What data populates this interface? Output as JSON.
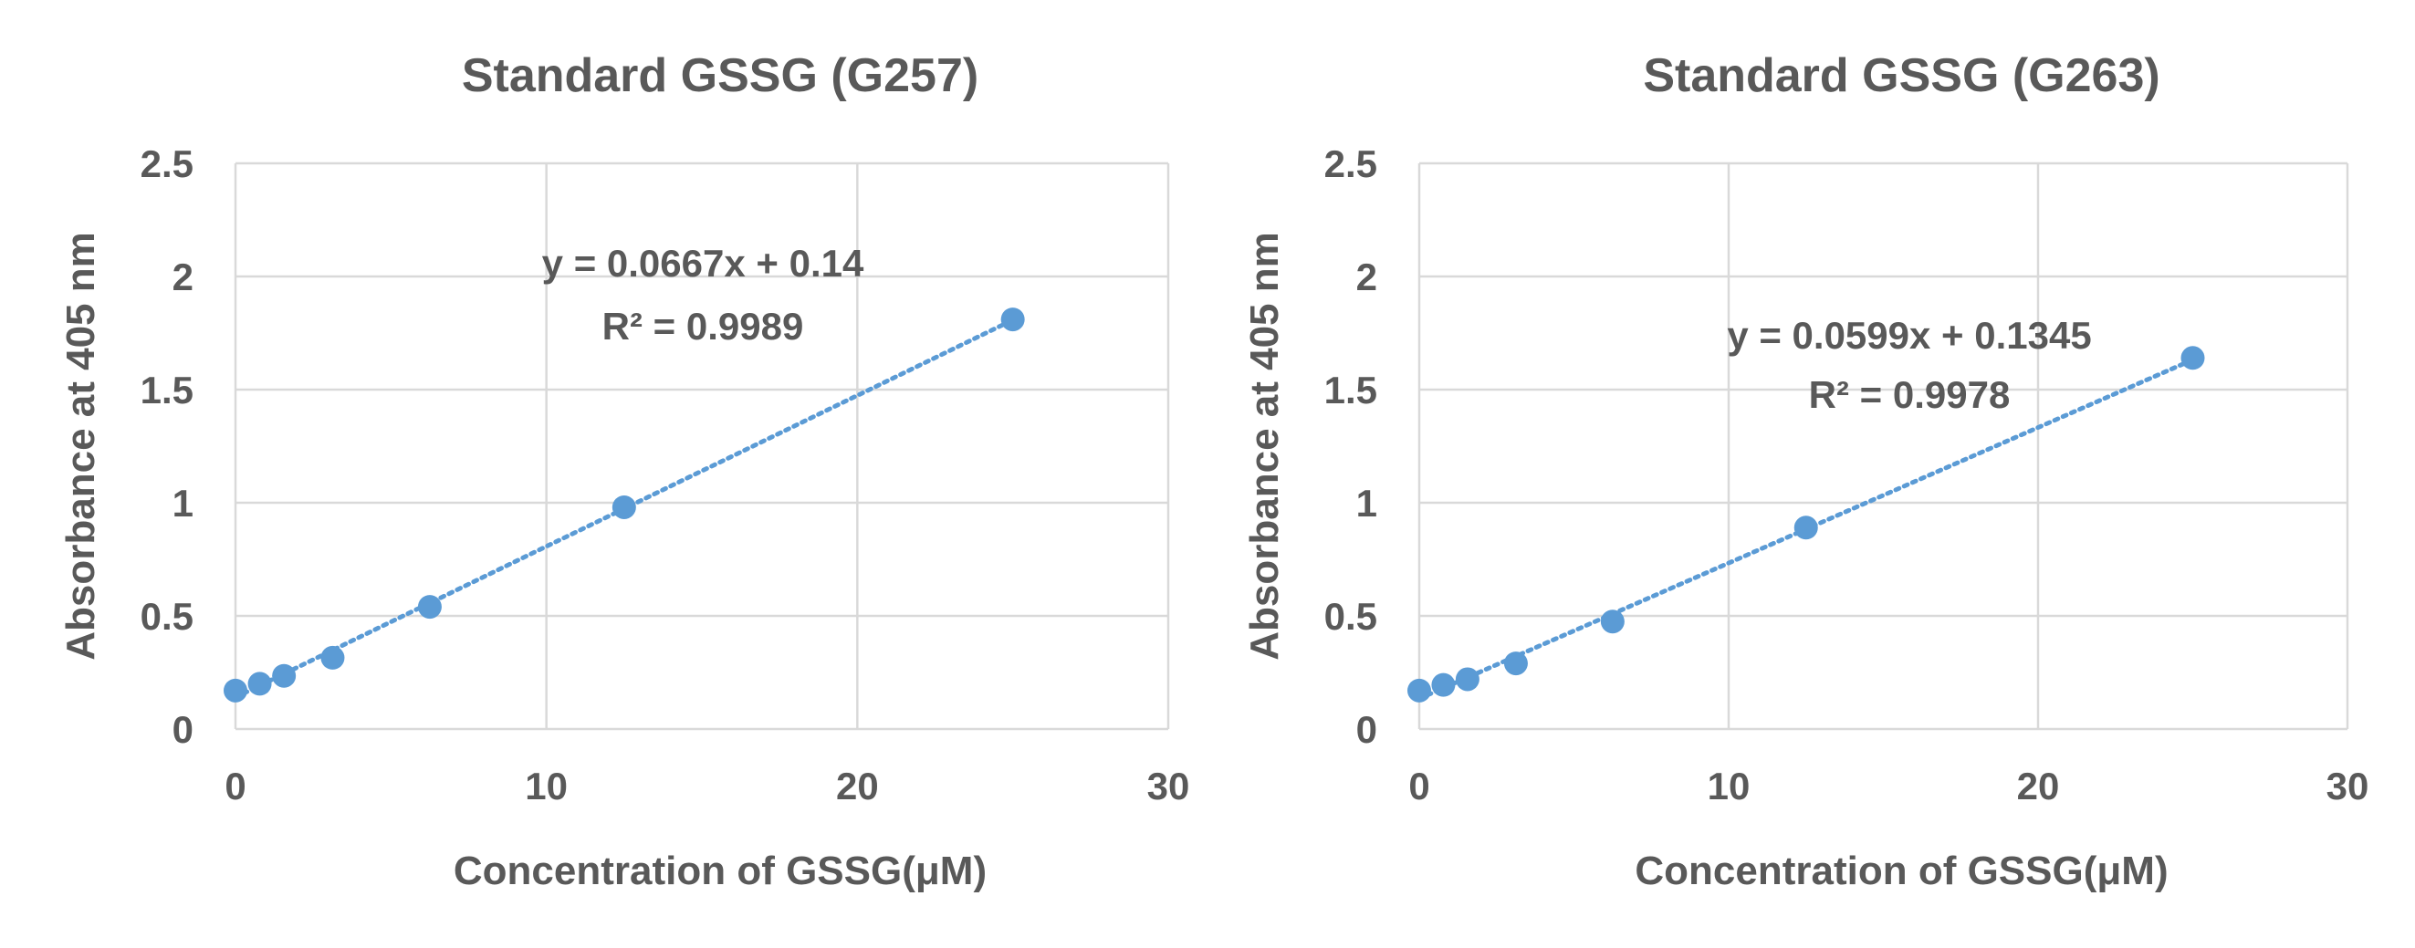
{
  "chart_data": [
    {
      "type": "scatter",
      "title": "Standard GSSG (G257)",
      "xlabel": "Concentration of GSSG(μM)",
      "ylabel": "Absorbance at 405 nm",
      "xlim": [
        0,
        30
      ],
      "ylim": [
        0,
        2.5
      ],
      "x_ticks": [
        "0",
        "10",
        "20",
        "30"
      ],
      "y_ticks": [
        "0",
        "0.5",
        "1",
        "1.5",
        "2",
        "2.5"
      ],
      "grid": true,
      "series": [
        {
          "x": [
            0,
            0.78,
            1.56,
            3.125,
            6.25,
            12.5,
            25
          ],
          "y": [
            0.17,
            0.2,
            0.235,
            0.315,
            0.54,
            0.98,
            1.81
          ],
          "color": "#5b9bd5"
        }
      ],
      "trendline": {
        "type": "linear",
        "slope": 0.0667,
        "intercept": 0.14,
        "x_range": [
          0,
          25
        ]
      },
      "annotations": [
        "y = 0.0667x + 0.14",
        "R² = 0.9989"
      ]
    },
    {
      "type": "scatter",
      "title": "Standard GSSG (G263)",
      "xlabel": "Concentration of GSSG(μM)",
      "ylabel": "Absorbance at 405 nm",
      "xlim": [
        0,
        30
      ],
      "ylim": [
        0,
        2.5
      ],
      "x_ticks": [
        "0",
        "10",
        "20",
        "30"
      ],
      "y_ticks": [
        "0",
        "0.5",
        "1",
        "1.5",
        "2",
        "2.5"
      ],
      "grid": true,
      "series": [
        {
          "x": [
            0,
            0.78,
            1.56,
            3.125,
            6.25,
            12.5,
            25
          ],
          "y": [
            0.17,
            0.195,
            0.22,
            0.29,
            0.475,
            0.89,
            1.64
          ],
          "color": "#5b9bd5"
        }
      ],
      "trendline": {
        "type": "linear",
        "slope": 0.0599,
        "intercept": 0.1345,
        "x_range": [
          0,
          25
        ]
      },
      "annotations": [
        "y = 0.0599x + 0.1345",
        "R² = 0.9978"
      ]
    }
  ]
}
